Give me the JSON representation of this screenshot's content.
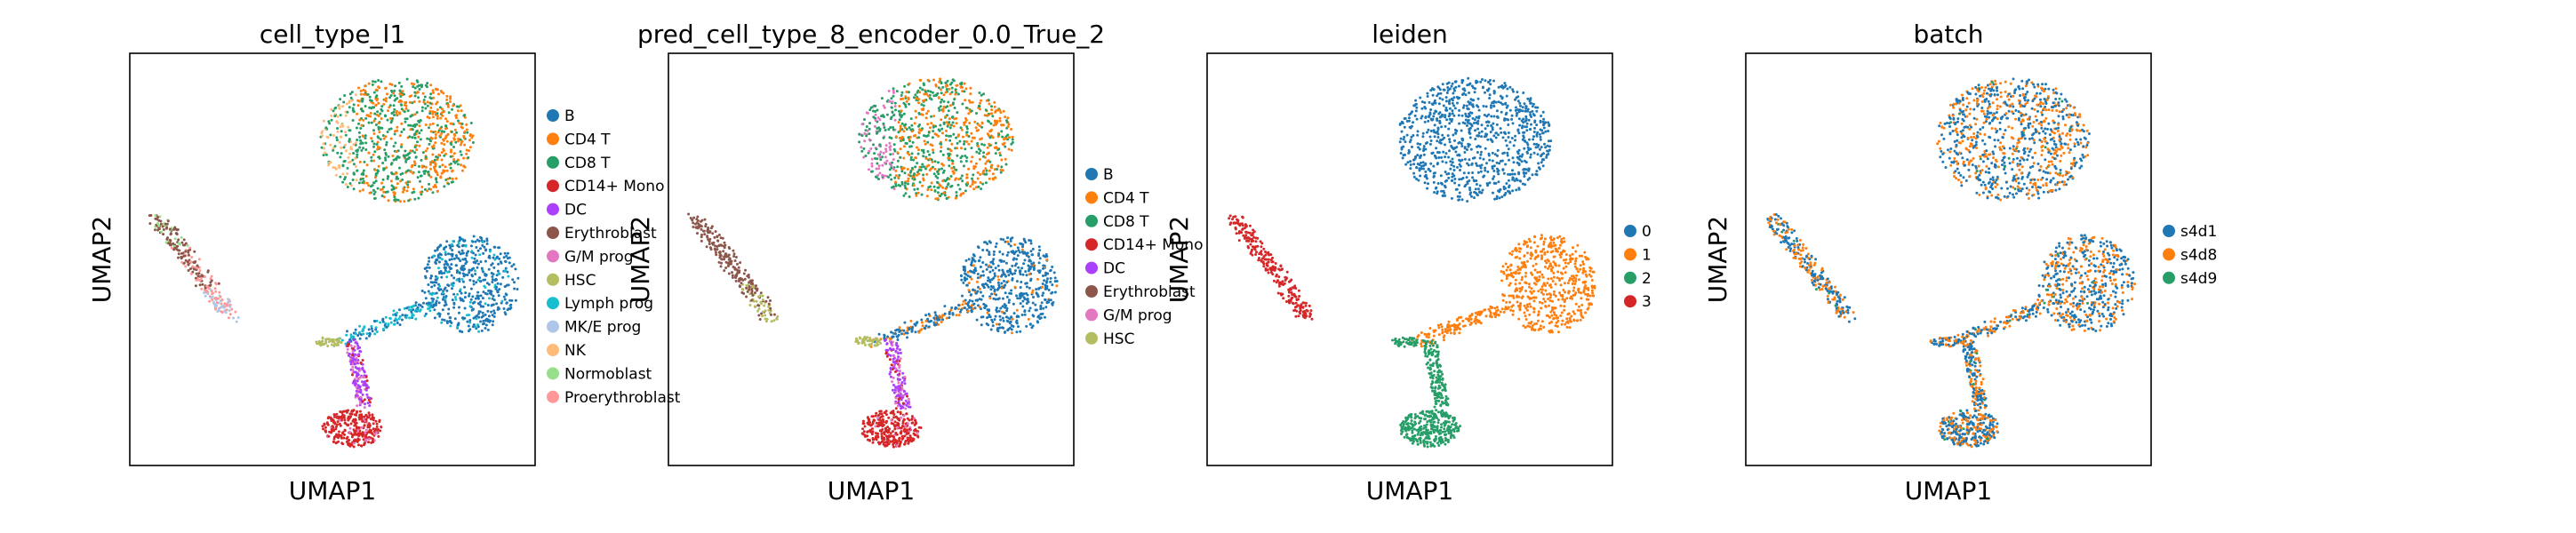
{
  "figure": {
    "background": "#ffffff"
  },
  "chart_data": [
    {
      "type": "scatter",
      "title": "cell_type_l1",
      "xlabel": "UMAP1",
      "ylabel": "UMAP2",
      "grid": false,
      "xticks": false,
      "yticks": false,
      "legend_location": "right margin",
      "legend": [
        {
          "label": "B",
          "color": "#1f77b4"
        },
        {
          "label": "CD4 T",
          "color": "#ff7f0e"
        },
        {
          "label": "CD8 T",
          "color": "#279e68"
        },
        {
          "label": "CD14+ Mono",
          "color": "#d62728"
        },
        {
          "label": "DC",
          "color": "#aa40fc"
        },
        {
          "label": "Erythroblast",
          "color": "#8c564b"
        },
        {
          "label": "G/M prog",
          "color": "#e377c2"
        },
        {
          "label": "HSC",
          "color": "#b5bd61"
        },
        {
          "label": "Lymph prog",
          "color": "#17becf"
        },
        {
          "label": "MK/E prog",
          "color": "#aec7e8"
        },
        {
          "label": "NK",
          "color": "#ffbb78"
        },
        {
          "label": "Normoblast",
          "color": "#98df8a"
        },
        {
          "label": "Proerythroblast",
          "color": "#ff9896"
        }
      ]
    },
    {
      "type": "scatter",
      "title": "pred_cell_type_8_encoder_0.0_True_2",
      "xlabel": "UMAP1",
      "ylabel": "UMAP2",
      "grid": false,
      "xticks": false,
      "yticks": false,
      "legend_location": "right margin",
      "legend": [
        {
          "label": "B",
          "color": "#1f77b4"
        },
        {
          "label": "CD4 T",
          "color": "#ff7f0e"
        },
        {
          "label": "CD8 T",
          "color": "#279e68"
        },
        {
          "label": "CD14+ Mono",
          "color": "#d62728"
        },
        {
          "label": "DC",
          "color": "#aa40fc"
        },
        {
          "label": "Erythroblast",
          "color": "#8c564b"
        },
        {
          "label": "G/M prog",
          "color": "#e377c2"
        },
        {
          "label": "HSC",
          "color": "#b5bd61"
        }
      ]
    },
    {
      "type": "scatter",
      "title": "leiden",
      "xlabel": "UMAP1",
      "ylabel": "UMAP2",
      "grid": false,
      "xticks": false,
      "yticks": false,
      "legend_location": "right margin",
      "legend": [
        {
          "label": "0",
          "color": "#1f77b4"
        },
        {
          "label": "1",
          "color": "#ff7f0e"
        },
        {
          "label": "2",
          "color": "#279e68"
        },
        {
          "label": "3",
          "color": "#d62728"
        }
      ]
    },
    {
      "type": "scatter",
      "title": "batch",
      "xlabel": "UMAP1",
      "ylabel": "UMAP2",
      "grid": false,
      "xticks": false,
      "yticks": false,
      "legend_location": "right margin",
      "legend": [
        {
          "label": "s4d1",
          "color": "#1f77b4"
        },
        {
          "label": "s4d8",
          "color": "#ff7f0e"
        },
        {
          "label": "s4d9",
          "color": "#279e68"
        }
      ]
    }
  ]
}
